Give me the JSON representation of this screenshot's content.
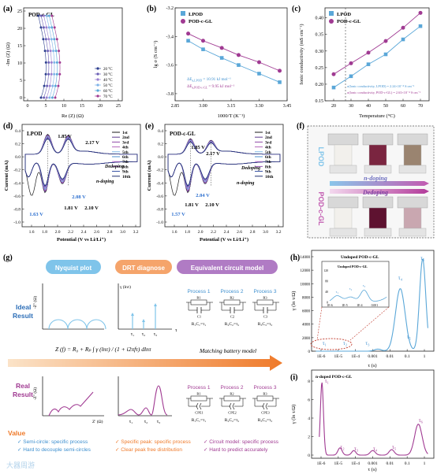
{
  "panel_labels": {
    "a": "(a)",
    "b": "(b)",
    "c": "(c)",
    "d": "(d)",
    "e": "(e)",
    "f": "(f)",
    "g": "(g)",
    "h": "(h)",
    "i": "(i)"
  },
  "panel_a": {
    "title": "POD-c-GL",
    "xlabel": "Re (Z) (Ω)",
    "ylabel": "-Im (Z) (Ω)",
    "xticks": [
      "0",
      "5",
      "10",
      "15",
      "20",
      "25"
    ],
    "yticks": [
      "0",
      "5",
      "10",
      "15",
      "20",
      "25"
    ],
    "legend": [
      "20 °C",
      "30 °C",
      "40 °C",
      "50 °C",
      "60 °C",
      "70 °C"
    ],
    "colors": [
      "#2e3f8f",
      "#6b5fb5",
      "#9a7fd0",
      "#7fb3e8",
      "#5aa7d8",
      "#a03a92"
    ]
  },
  "panel_b": {
    "ylabel": "lg σ (S cm⁻¹)",
    "xlabel": "1000/T (K⁻¹)",
    "xticks": [
      "2.85",
      "3.00",
      "3.15",
      "3.30",
      "3.45"
    ],
    "yticks": [
      "-3.2",
      "-3.4",
      "-3.6",
      "-3.8"
    ],
    "legend": [
      "LPOD",
      "POD-c-GL"
    ],
    "annot1": "ΔE",
    "annot1_sub": "a,LPOD",
    "annot1_val": " = 10.91 kJ mol⁻¹",
    "annot2": "ΔE",
    "annot2_sub": "a,POD-c-GL",
    "annot2_val": " = 9.95 kJ mol⁻¹"
  },
  "panel_c": {
    "ylabel": "Ionic conductivity (mS cm⁻¹)",
    "xlabel": "Temperature (°C)",
    "xticks": [
      "20",
      "30",
      "40",
      "50",
      "60",
      "70"
    ],
    "yticks": [
      "0.15",
      "0.20",
      "0.25",
      "0.30",
      "0.35",
      "0.40"
    ],
    "legend": [
      "LPOD",
      "POD-c-GL"
    ],
    "annot1": "σ(lonic conductivity, LPOD) = 2.24×10⁻⁴ S cm⁻¹",
    "annot2": "σ(lonic conductivity, POD-c-GL) = 2.63×10⁻⁴ S cm⁻¹"
  },
  "panel_d": {
    "title": "LPOD",
    "xlabel": "Potential (V vs Li/Li⁺)",
    "ylabel": "Current (mA)",
    "xticks": [
      "1.6",
      "1.8",
      "2.0",
      "2.2",
      "2.4",
      "2.6",
      "2.8",
      "3.0",
      "3.2"
    ],
    "yticks": [
      "0.4",
      "0.2",
      "0.0",
      "-0.2",
      "-0.4",
      "-0.6",
      "-0.8",
      "-1.0"
    ],
    "legend": [
      "1st",
      "2nd",
      "3rd",
      "4th",
      "5th",
      "6th",
      "7th",
      "8th",
      "9th",
      "10th"
    ],
    "peaks": [
      "1.85 V",
      "2.17 V",
      "2.08 V",
      "1.81 V",
      "2.10 V",
      "1.63 V"
    ],
    "dedoping": "Dedoping",
    "ndoping": "n-doping"
  },
  "panel_e": {
    "title": "POD-c-GL",
    "xlabel": "Potential (V vs Li/Li⁺)",
    "ylabel": "Current (mA)",
    "xticks": [
      "1.6",
      "1.8",
      "2.0",
      "2.2",
      "2.4",
      "2.6",
      "2.8",
      "3.0",
      "3.2"
    ],
    "yticks": [
      "0.4",
      "0.2",
      "0.0",
      "-0.2",
      "-0.4",
      "-0.6",
      "-0.8",
      "-1.0"
    ],
    "legend": [
      "1st",
      "2nd",
      "3rd",
      "4th",
      "5th",
      "6th",
      "7th",
      "8th",
      "9th",
      "10th"
    ],
    "peaks": [
      "1.85 V",
      "2.17 V",
      "2.04 V",
      "1.81 V",
      "2.10 V",
      "1.57 V"
    ],
    "dedoping": "Dedoping",
    "ndoping": "n-doping"
  },
  "panel_f": {
    "label_top": "LPOD",
    "label_bottom": "POD-c-GL",
    "arrow_top": "n-doping",
    "arrow_bottom": "Dedoping"
  },
  "panel_g": {
    "col1": "Nyquist plot",
    "col2": "DRT diagnose",
    "col3": "Equivalent circuit model",
    "ideal": "Ideal",
    "ideal2": "Result",
    "real": "Real",
    "real2": "Result",
    "axis_z": "-Z'' (Ω)",
    "axis_zr": "Z' (Ω)",
    "axis_gamma": "γ (lnτ)",
    "axis_tau": "τ",
    "taus": [
      "τ₁",
      "τ₂",
      "τ₃"
    ],
    "processes": [
      "Process 1",
      "Process 2",
      "Process 3"
    ],
    "rc": [
      "R₁C₁=τ₁",
      "R₂C₂=τ₂",
      "R₃C₃=τ₃"
    ],
    "resistors": [
      "R1",
      "R2",
      "R3"
    ],
    "capacitors": [
      "C1",
      "C2",
      "C3"
    ],
    "cpes": [
      "CPE1",
      "CPE2",
      "CPE3"
    ],
    "equation": "Z (f) = R₀ + Rₚ ∫ γ (lnτ) / (1 + i2πfτ) dlnτ",
    "matching": "Matching battery model",
    "value_title": "Value",
    "values_col1": [
      "Semi-circle: specific process",
      "Hard to decouple semi-circles"
    ],
    "values_col2": [
      "Specific peak: specific process",
      "Clear peak free distribution"
    ],
    "values_col3": [
      "Circuit model: specific process",
      "Hard to predict accurately"
    ],
    "watermark": "大器周游"
  },
  "panel_h": {
    "title": "Undoped POD-c-GL",
    "inset_title": "Undoped POD-c-GL",
    "ylabel": "γ (ln τ/Ω)",
    "xlabel": "τ (s)",
    "xticks": [
      "1E-6",
      "1E-5",
      "1E-4",
      "0.001",
      "0.01",
      "0.1",
      "1"
    ],
    "yticks": [
      "0",
      "2000",
      "4000",
      "6000",
      "8000",
      "10000",
      "12000",
      "14000"
    ],
    "peaks": [
      "τ₁",
      "τ₂",
      "τ₃",
      "τ₄",
      "τ₅",
      "τ₆"
    ],
    "inset_yticks": [
      "0",
      "40",
      "80",
      "120"
    ],
    "inset_xticks": [
      "1E-6",
      "1E-5",
      "1E-4",
      "0.001"
    ]
  },
  "panel_i": {
    "title": "n-doped POD-c-GL",
    "ylabel": "γ (ln τ/Ω)",
    "xlabel": "τ (s)",
    "xticks": [
      "1E-6",
      "1E-5",
      "1E-4",
      "0.001",
      "0.01",
      "0.1",
      "1"
    ],
    "yticks": [
      "0",
      "2",
      "4",
      "6",
      "8"
    ],
    "peaks": [
      "τ₁",
      "τ₂",
      "τ₃",
      "τ₄",
      "τ₅",
      "τ₆"
    ]
  },
  "chart_data": [
    {
      "type": "line",
      "panel": "b",
      "title": "",
      "xlabel": "1000/T (K⁻¹)",
      "ylabel": "lg σ (S cm⁻¹)",
      "x": [
        2.92,
        3.0,
        3.1,
        3.19,
        3.3,
        3.41
      ],
      "series": [
        {
          "name": "LPOD",
          "values": [
            -3.43,
            -3.49,
            -3.55,
            -3.6,
            -3.66,
            -3.72
          ]
        },
        {
          "name": "POD-c-GL",
          "values": [
            -3.38,
            -3.43,
            -3.48,
            -3.53,
            -3.58,
            -3.64
          ]
        }
      ],
      "xlim": [
        2.85,
        3.45
      ],
      "ylim": [
        -3.85,
        -3.2
      ]
    },
    {
      "type": "line",
      "panel": "c",
      "title": "",
      "xlabel": "Temperature (°C)",
      "ylabel": "Ionic conductivity (mS cm⁻¹)",
      "x": [
        20,
        30,
        40,
        50,
        60,
        70
      ],
      "series": [
        {
          "name": "LPOD",
          "values": [
            0.19,
            0.224,
            0.26,
            0.29,
            0.335,
            0.375
          ]
        },
        {
          "name": "POD-c-GL",
          "values": [
            0.23,
            0.263,
            0.295,
            0.33,
            0.37,
            0.415
          ]
        }
      ],
      "xlim": [
        15,
        75
      ],
      "ylim": [
        0.15,
        0.43
      ]
    }
  ]
}
